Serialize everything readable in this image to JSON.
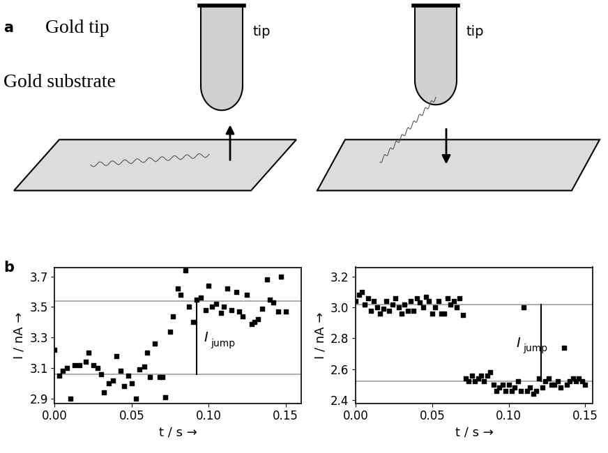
{
  "diagram": {
    "panel_label": "a",
    "tip_caption": "Gold tip",
    "substrate_caption": "Gold substrate",
    "tip_tags": [
      "tip",
      "tip"
    ]
  },
  "panel_b_label": "b",
  "chart_data": [
    {
      "type": "scatter",
      "xlabel": "t / s →",
      "ylabel": "I / nA →",
      "color": "#000000",
      "marker": "square",
      "x": [
        0.0,
        0.003,
        0.005,
        0.008,
        0.01,
        0.013,
        0.016,
        0.02,
        0.022,
        0.025,
        0.028,
        0.03,
        0.032,
        0.035,
        0.038,
        0.04,
        0.043,
        0.045,
        0.048,
        0.05,
        0.053,
        0.055,
        0.058,
        0.06,
        0.062,
        0.065,
        0.068,
        0.07,
        0.072,
        0.075,
        0.077,
        0.08,
        0.082,
        0.085,
        0.087,
        0.09,
        0.092,
        0.095,
        0.098,
        0.1,
        0.102,
        0.105,
        0.108,
        0.11,
        0.112,
        0.115,
        0.118,
        0.12,
        0.122,
        0.125,
        0.128,
        0.13,
        0.132,
        0.135,
        0.138,
        0.14,
        0.142,
        0.145,
        0.147,
        0.15
      ],
      "values": [
        3.22,
        3.05,
        3.08,
        3.1,
        2.9,
        3.12,
        3.12,
        3.14,
        3.2,
        3.12,
        3.1,
        3.06,
        2.94,
        3.0,
        3.02,
        3.18,
        3.08,
        2.98,
        3.05,
        3.0,
        2.9,
        3.09,
        3.11,
        3.2,
        3.04,
        3.26,
        3.04,
        3.04,
        2.91,
        3.34,
        3.44,
        3.62,
        3.58,
        3.74,
        3.5,
        3.4,
        3.55,
        3.56,
        3.48,
        3.64,
        3.5,
        3.52,
        3.46,
        3.5,
        3.62,
        3.48,
        3.6,
        3.47,
        3.44,
        3.58,
        3.39,
        3.4,
        3.42,
        3.49,
        3.68,
        3.55,
        3.53,
        3.47,
        3.7,
        3.47
      ],
      "levels": [
        3.06,
        3.54
      ],
      "annotations": [
        {
          "text": "I",
          "subscript": "jump",
          "x": 0.092
        }
      ],
      "xlim": [
        0.0,
        0.16
      ],
      "ylim": [
        2.87,
        3.76
      ],
      "xticks": [
        {
          "value": 0.0,
          "label": "0.00"
        },
        {
          "value": 0.05,
          "label": "0.05"
        },
        {
          "value": 0.1,
          "label": "0.10"
        },
        {
          "value": 0.15,
          "label": "0.15"
        }
      ],
      "yticks": [
        2.9,
        3.1,
        3.3,
        3.5,
        3.7
      ]
    },
    {
      "type": "scatter",
      "xlabel": "t / s →",
      "ylabel": "I / nA →",
      "color": "#000000",
      "marker": "square",
      "x": [
        0.0,
        0.002,
        0.004,
        0.006,
        0.008,
        0.01,
        0.012,
        0.014,
        0.016,
        0.018,
        0.02,
        0.022,
        0.024,
        0.026,
        0.028,
        0.03,
        0.032,
        0.034,
        0.036,
        0.038,
        0.04,
        0.042,
        0.044,
        0.046,
        0.048,
        0.05,
        0.052,
        0.054,
        0.056,
        0.058,
        0.06,
        0.062,
        0.064,
        0.066,
        0.068,
        0.07,
        0.072,
        0.074,
        0.076,
        0.078,
        0.08,
        0.082,
        0.084,
        0.086,
        0.088,
        0.09,
        0.092,
        0.094,
        0.096,
        0.098,
        0.1,
        0.102,
        0.104,
        0.106,
        0.108,
        0.11,
        0.112,
        0.114,
        0.116,
        0.118,
        0.12,
        0.122,
        0.124,
        0.126,
        0.128,
        0.13,
        0.132,
        0.134,
        0.136,
        0.138,
        0.14,
        0.142,
        0.144,
        0.146,
        0.148,
        0.15
      ],
      "values": [
        3.04,
        3.08,
        3.1,
        3.02,
        3.06,
        2.98,
        3.04,
        3.0,
        2.96,
        2.99,
        3.04,
        2.98,
        3.02,
        3.06,
        3.0,
        2.96,
        3.02,
        2.98,
        3.04,
        2.98,
        3.06,
        3.03,
        3.0,
        3.07,
        3.04,
        2.96,
        3.0,
        3.04,
        2.96,
        2.96,
        3.06,
        3.02,
        3.04,
        3.0,
        3.06,
        2.95,
        2.54,
        2.52,
        2.56,
        2.52,
        2.54,
        2.56,
        2.52,
        2.56,
        2.58,
        2.5,
        2.46,
        2.48,
        2.5,
        2.46,
        2.5,
        2.46,
        2.48,
        2.52,
        2.46,
        3.0,
        2.46,
        2.48,
        2.44,
        2.46,
        2.54,
        2.48,
        2.52,
        2.54,
        2.5,
        2.5,
        2.52,
        2.48,
        2.74,
        2.5,
        2.52,
        2.54,
        2.52,
        2.54,
        2.52,
        2.5
      ],
      "levels": [
        3.02,
        2.52
      ],
      "annotations": [
        {
          "text": "I",
          "subscript": "jump",
          "x": 0.121
        }
      ],
      "xlim": [
        0.0,
        0.155
      ],
      "ylim": [
        2.38,
        3.26
      ],
      "xticks": [
        {
          "value": 0.0,
          "label": "0.00"
        },
        {
          "value": 0.05,
          "label": "0.05"
        },
        {
          "value": 0.1,
          "label": "0.10"
        },
        {
          "value": 0.15,
          "label": "0.15"
        }
      ],
      "yticks": [
        2.4,
        2.6,
        2.8,
        3.0,
        3.2
      ]
    }
  ]
}
